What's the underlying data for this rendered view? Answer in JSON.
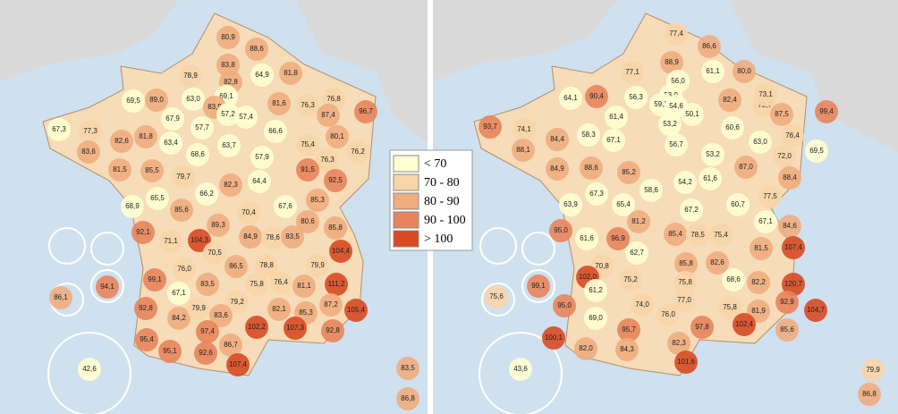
{
  "legend": {
    "items": [
      {
        "label": "< 70",
        "color": "#ffffd2"
      },
      {
        "label": "70 - 80",
        "color": "#f8d5a8"
      },
      {
        "label": "80 - 90",
        "color": "#f0ad80"
      },
      {
        "label": "90 - 100",
        "color": "#e8845c"
      },
      {
        "label": "> 100",
        "color": "#d84a24"
      }
    ],
    "breaks": [
      70,
      80,
      90,
      100
    ]
  },
  "maps": [
    {
      "labels": [
        {
          "value": 80.9,
          "label": "80,9"
        },
        {
          "value": 88.6,
          "label": "88,6"
        },
        {
          "value": 78.9,
          "label": "78,9"
        },
        {
          "value": 83.8,
          "label": "83,8"
        },
        {
          "value": 64.9,
          "label": "64,9"
        },
        {
          "value": 81.8,
          "label": "81,8"
        },
        {
          "value": 89.0,
          "label": "89,0"
        },
        {
          "value": 69.5,
          "label": "69,5"
        },
        {
          "value": 63.0,
          "label": "63,0"
        },
        {
          "value": 82.8,
          "label": "82,8"
        },
        {
          "value": 69.1,
          "label": "69,1"
        },
        {
          "value": 83.9,
          "label": "83,9"
        },
        {
          "value": 57.2,
          "label": "57,2"
        },
        {
          "value": 57.4,
          "label": "57,4"
        },
        {
          "value": 81.6,
          "label": "81,6"
        },
        {
          "value": 76.3,
          "label": "76,3"
        },
        {
          "value": 76.8,
          "label": "76,8"
        },
        {
          "value": 87.4,
          "label": "87,4"
        },
        {
          "value": 96.7,
          "label": "96,7"
        },
        {
          "value": 67.3,
          "label": "67,3"
        },
        {
          "value": 77.3,
          "label": "77,3"
        },
        {
          "value": 67.9,
          "label": "67,9"
        },
        {
          "value": 57.7,
          "label": "57,7"
        },
        {
          "value": 63.7,
          "label": "63,7"
        },
        {
          "value": 66.6,
          "label": "66,6"
        },
        {
          "value": 80.1,
          "label": "80,1"
        },
        {
          "value": 82.6,
          "label": "82,6"
        },
        {
          "value": 81.8,
          "label": "81,8"
        },
        {
          "value": 63.4,
          "label": "63,4"
        },
        {
          "value": 75.4,
          "label": "75,4"
        },
        {
          "value": 83.6,
          "label": "83,6"
        },
        {
          "value": 68.6,
          "label": "68,6"
        },
        {
          "value": 57.9,
          "label": "57,9"
        },
        {
          "value": 76.3,
          "label": "76,3"
        },
        {
          "value": 76.2,
          "label": "76,2"
        },
        {
          "value": 81.5,
          "label": "81,5"
        },
        {
          "value": 85.5,
          "label": "85,5"
        },
        {
          "value": 64.4,
          "label": "64,4"
        },
        {
          "value": 91.5,
          "label": "91,5"
        },
        {
          "value": 79.7,
          "label": "79,7"
        },
        {
          "value": 82.3,
          "label": "82,3"
        },
        {
          "value": 92.5,
          "label": "92,5"
        },
        {
          "value": 65.5,
          "label": "65,5"
        },
        {
          "value": 66.2,
          "label": "66,2"
        },
        {
          "value": 85.3,
          "label": "85,3"
        },
        {
          "value": 68.9,
          "label": "68,9"
        },
        {
          "value": 85.6,
          "label": "85,6"
        },
        {
          "value": 67.6,
          "label": "67,6"
        },
        {
          "value": 70.4,
          "label": "70,4"
        },
        {
          "value": 80.6,
          "label": "80,6"
        },
        {
          "value": 89.3,
          "label": "89,3"
        },
        {
          "value": 85.8,
          "label": "85,8"
        },
        {
          "value": 92.1,
          "label": "92,1"
        },
        {
          "value": 71.1,
          "label": "71,1"
        },
        {
          "value": 104.3,
          "label": "104,3"
        },
        {
          "value": 84.9,
          "label": "84,9"
        },
        {
          "value": 78.6,
          "label": "78,6"
        },
        {
          "value": 83.5,
          "label": "83,5"
        },
        {
          "value": 104.4,
          "label": "104,4"
        },
        {
          "value": 70.5,
          "label": "70,5"
        },
        {
          "value": 76.0,
          "label": "76,0"
        },
        {
          "value": 86.5,
          "label": "86,5"
        },
        {
          "value": 78.8,
          "label": "78,8"
        },
        {
          "value": 99.1,
          "label": "99,1"
        },
        {
          "value": 79.9,
          "label": "79,9"
        },
        {
          "value": 67.1,
          "label": "67,1"
        },
        {
          "value": 83.5,
          "label": "83,5"
        },
        {
          "value": 75.8,
          "label": "75,8"
        },
        {
          "value": 76.4,
          "label": "76,4"
        },
        {
          "value": 81.1,
          "label": "81,1"
        },
        {
          "value": 111.2,
          "label": "111,2"
        },
        {
          "value": 79.2,
          "label": "79,2"
        },
        {
          "value": 87.2,
          "label": "87,2"
        },
        {
          "value": 92.8,
          "label": "92,8"
        },
        {
          "value": 84.2,
          "label": "84,2"
        },
        {
          "value": 79.9,
          "label": "79,9"
        },
        {
          "value": 83.6,
          "label": "83,6"
        },
        {
          "value": 82.1,
          "label": "82,1"
        },
        {
          "value": 85.3,
          "label": "85,3"
        },
        {
          "value": 105.4,
          "label": "105,4"
        },
        {
          "value": 102.2,
          "label": "102,2"
        },
        {
          "value": 107.3,
          "label": "107,3"
        },
        {
          "value": 92.8,
          "label": "92,8"
        },
        {
          "value": 97.4,
          "label": "97,4"
        },
        {
          "value": 95.4,
          "label": "95,4"
        },
        {
          "value": 86.7,
          "label": "86,7"
        },
        {
          "value": 95.1,
          "label": "95,1"
        },
        {
          "value": 92.6,
          "label": "92,6"
        },
        {
          "value": 107.4,
          "label": "107,4"
        },
        {
          "value": 42.6,
          "label": "42,6"
        },
        {
          "value": 94.1,
          "label": "94,1"
        },
        {
          "value": 86.1,
          "label": "86,1"
        },
        {
          "value": 83.5,
          "label": "83,5"
        },
        {
          "value": 86.8,
          "label": "86,8"
        }
      ]
    },
    {
      "labels": [
        {
          "value": 77.4,
          "label": "77,4"
        },
        {
          "value": 86.6,
          "label": "86,6"
        },
        {
          "value": 88.9,
          "label": "88,9"
        },
        {
          "value": 61.1,
          "label": "61,1"
        },
        {
          "value": 80.0,
          "label": "80,0"
        },
        {
          "value": 77.1,
          "label": "77,1"
        },
        {
          "value": 56.0,
          "label": "56,0"
        },
        {
          "value": 64.1,
          "label": "64,1"
        },
        {
          "value": 90.4,
          "label": "90,4"
        },
        {
          "value": 56.3,
          "label": "56,3"
        },
        {
          "value": 53.0,
          "label": "53,0"
        },
        {
          "value": 59.2,
          "label": "59,2"
        },
        {
          "value": 54.6,
          "label": "54,6"
        },
        {
          "value": 50.1,
          "label": "50,1"
        },
        {
          "value": 82.4,
          "label": "82,4"
        },
        {
          "value": 73.7,
          "label": "73,7"
        },
        {
          "value": 73.1,
          "label": "73,1"
        },
        {
          "value": 87.5,
          "label": "87,5"
        },
        {
          "value": 99.4,
          "label": "99,4"
        },
        {
          "value": 93.7,
          "label": "93,7"
        },
        {
          "value": 74.1,
          "label": "74,1"
        },
        {
          "value": 61.4,
          "label": "61,4"
        },
        {
          "value": 53.2,
          "label": "53,2"
        },
        {
          "value": 60.6,
          "label": "60,6"
        },
        {
          "value": 88.1,
          "label": "88,1"
        },
        {
          "value": 84.4,
          "label": "84,4"
        },
        {
          "value": 58.3,
          "label": "58,3"
        },
        {
          "value": 67.1,
          "label": "67,1"
        },
        {
          "value": 56.7,
          "label": "56,7"
        },
        {
          "value": 63.0,
          "label": "63,0"
        },
        {
          "value": 76.4,
          "label": "76,4"
        },
        {
          "value": 69.5,
          "label": "69,5"
        },
        {
          "value": 72.0,
          "label": "72,0"
        },
        {
          "value": 53.2,
          "label": "53,2"
        },
        {
          "value": 84.9,
          "label": "84,9"
        },
        {
          "value": 88.6,
          "label": "88,6"
        },
        {
          "value": 85.2,
          "label": "85,2"
        },
        {
          "value": 87.0,
          "label": "87,0"
        },
        {
          "value": 88.4,
          "label": "88,4"
        },
        {
          "value": 58.6,
          "label": "58,6"
        },
        {
          "value": 54.2,
          "label": "54,2"
        },
        {
          "value": 61.6,
          "label": "61,6"
        },
        {
          "value": 67.3,
          "label": "67,3"
        },
        {
          "value": 77.5,
          "label": "77,5"
        },
        {
          "value": 63.9,
          "label": "63,9"
        },
        {
          "value": 65.4,
          "label": "65,4"
        },
        {
          "value": 67.2,
          "label": "67,2"
        },
        {
          "value": 60.7,
          "label": "60,7"
        },
        {
          "value": 67.1,
          "label": "67,1"
        },
        {
          "value": 84.6,
          "label": "84,6"
        },
        {
          "value": 81.2,
          "label": "81,2"
        },
        {
          "value": 95.0,
          "label": "95,0"
        },
        {
          "value": 61.6,
          "label": "61,6"
        },
        {
          "value": 96.9,
          "label": "96,9"
        },
        {
          "value": 85.4,
          "label": "85,4"
        },
        {
          "value": 78.5,
          "label": "78,5"
        },
        {
          "value": 75.4,
          "label": "75,4"
        },
        {
          "value": 81.5,
          "label": "81,5"
        },
        {
          "value": 107.4,
          "label": "107,4"
        },
        {
          "value": 62.7,
          "label": "62,7"
        },
        {
          "value": 70.8,
          "label": "70,8"
        },
        {
          "value": 85.8,
          "label": "85,8"
        },
        {
          "value": 82.6,
          "label": "82,6"
        },
        {
          "value": 102.0,
          "label": "102,0"
        },
        {
          "value": 75.2,
          "label": "75,2"
        },
        {
          "value": 75.8,
          "label": "75,8"
        },
        {
          "value": 68.6,
          "label": "68,6"
        },
        {
          "value": 82.2,
          "label": "82,2"
        },
        {
          "value": 120.7,
          "label": "120,7"
        },
        {
          "value": 61.2,
          "label": "61,2"
        },
        {
          "value": 77.0,
          "label": "77,0"
        },
        {
          "value": 74.0,
          "label": "74,0"
        },
        {
          "value": 75.8,
          "label": "75,8"
        },
        {
          "value": 81.9,
          "label": "81,9"
        },
        {
          "value": 92.9,
          "label": "92,9"
        },
        {
          "value": 104.7,
          "label": "104,7"
        },
        {
          "value": 95.0,
          "label": "95,0"
        },
        {
          "value": 69.0,
          "label": "69,0"
        },
        {
          "value": 76.0,
          "label": "76,0"
        },
        {
          "value": 97.8,
          "label": "97,8"
        },
        {
          "value": 102.4,
          "label": "102,4"
        },
        {
          "value": 85.6,
          "label": "85,6"
        },
        {
          "value": 100.1,
          "label": "100,1"
        },
        {
          "value": 95.7,
          "label": "95,7"
        },
        {
          "value": 82.3,
          "label": "82,3"
        },
        {
          "value": 82.0,
          "label": "82,0"
        },
        {
          "value": 84.3,
          "label": "84,3"
        },
        {
          "value": 101.6,
          "label": "101,6"
        },
        {
          "value": 43.6,
          "label": "43,6"
        },
        {
          "value": 99.1,
          "label": "99,1"
        },
        {
          "value": 75.6,
          "label": "75,6"
        },
        {
          "value": 79.9,
          "label": "79,9"
        },
        {
          "value": 86.8,
          "label": "86,8"
        }
      ]
    }
  ]
}
